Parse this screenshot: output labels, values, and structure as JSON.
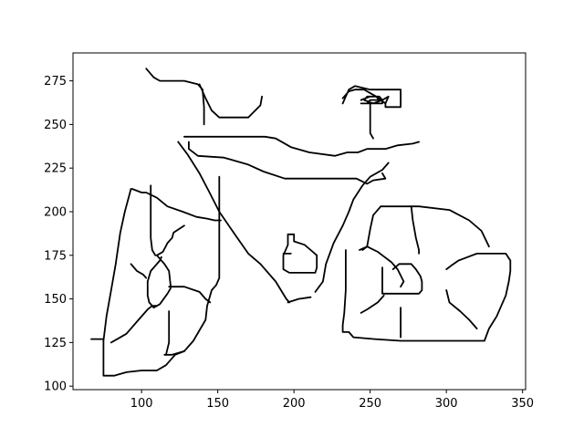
{
  "chart_data": {
    "type": "line",
    "title": "",
    "xlabel": "",
    "ylabel": "",
    "xlim": [
      55,
      352
    ],
    "ylim": [
      98,
      291
    ],
    "grid": false,
    "legend": "none",
    "line_color": "#000000",
    "x_ticks": [
      100,
      150,
      200,
      250,
      300,
      350
    ],
    "y_ticks": [
      100,
      125,
      150,
      175,
      200,
      225,
      250,
      275
    ],
    "x_tick_labels": [
      "100",
      "150",
      "200",
      "250",
      "300",
      "350"
    ],
    "y_tick_labels": [
      "100",
      "125",
      "150",
      "175",
      "200",
      "225",
      "250",
      "275"
    ],
    "strokes": [
      {
        "name": "top-left-arc",
        "points": [
          [
            103,
            282
          ],
          [
            108,
            277
          ],
          [
            112,
            275
          ],
          [
            128,
            275
          ],
          [
            137,
            273
          ],
          [
            140,
            270
          ]
        ]
      },
      {
        "name": "neck-curve",
        "points": [
          [
            138,
            273
          ],
          [
            142,
            265
          ],
          [
            146,
            258
          ],
          [
            151,
            254
          ],
          [
            170,
            254
          ],
          [
            178,
            261
          ],
          [
            179,
            266
          ]
        ]
      },
      {
        "name": "neck-tail",
        "points": [
          [
            140,
            270
          ],
          [
            141,
            260
          ],
          [
            141,
            250
          ]
        ]
      },
      {
        "name": "top-bar",
        "points": [
          [
            128,
            243
          ],
          [
            181,
            243
          ],
          [
            188,
            242
          ],
          [
            198,
            237
          ],
          [
            210,
            234
          ],
          [
            227,
            232
          ],
          [
            235,
            234
          ],
          [
            242,
            234
          ],
          [
            248,
            236
          ],
          [
            260,
            236
          ],
          [
            268,
            238
          ],
          [
            278,
            239
          ],
          [
            282,
            240
          ]
        ]
      },
      {
        "name": "second-bar",
        "points": [
          [
            131,
            240
          ],
          [
            131,
            236
          ],
          [
            137,
            232
          ],
          [
            154,
            231
          ],
          [
            170,
            227
          ],
          [
            180,
            223
          ],
          [
            194,
            219
          ],
          [
            196,
            219
          ],
          [
            241,
            219
          ],
          [
            248,
            216
          ],
          [
            252,
            218
          ],
          [
            260,
            219
          ],
          [
            258,
            222
          ]
        ]
      },
      {
        "name": "upper-right-diagonal",
        "points": [
          [
            262,
            228
          ],
          [
            258,
            224
          ],
          [
            250,
            220
          ],
          [
            245,
            215
          ],
          [
            239,
            207
          ],
          [
            236,
            200
          ],
          [
            232,
            192
          ],
          [
            226,
            182
          ],
          [
            221,
            170
          ],
          [
            219,
            160
          ],
          [
            214,
            154
          ]
        ]
      },
      {
        "name": "long-diagonal",
        "points": [
          [
            124,
            240
          ],
          [
            130,
            233
          ],
          [
            138,
            222
          ],
          [
            144,
            212
          ],
          [
            151,
            200
          ],
          [
            162,
            186
          ],
          [
            170,
            176
          ],
          [
            178,
            170
          ],
          [
            188,
            160
          ],
          [
            195,
            150
          ],
          [
            197,
            148
          ]
        ]
      },
      {
        "name": "diagonal-end",
        "points": [
          [
            196,
            148
          ],
          [
            203,
            150
          ],
          [
            211,
            151
          ]
        ]
      },
      {
        "name": "vertical-center",
        "points": [
          [
            151,
            220
          ],
          [
            151,
            195
          ],
          [
            151,
            188
          ],
          [
            151,
            162
          ],
          [
            149,
            158
          ]
        ]
      },
      {
        "name": "center-tail",
        "points": [
          [
            149,
            158
          ],
          [
            146,
            155
          ],
          [
            143,
            146
          ],
          [
            142,
            138
          ],
          [
            138,
            132
          ],
          [
            134,
            126
          ],
          [
            128,
            120
          ],
          [
            120,
            118
          ],
          [
            115,
            118
          ]
        ]
      },
      {
        "name": "left-vertical",
        "points": [
          [
            106,
            215
          ],
          [
            106,
            185
          ],
          [
            107,
            178
          ],
          [
            109,
            175
          ]
        ]
      },
      {
        "name": "small-hook",
        "points": [
          [
            110,
            175
          ],
          [
            114,
            177
          ],
          [
            117,
            182
          ],
          [
            120,
            185
          ],
          [
            121,
            188
          ],
          [
            128,
            192
          ]
        ]
      },
      {
        "name": "left-loop",
        "points": [
          [
            110,
            175
          ],
          [
            115,
            170
          ],
          [
            118,
            166
          ],
          [
            119,
            158
          ],
          [
            119,
            156
          ],
          [
            117,
            153
          ],
          [
            112,
            147
          ],
          [
            108,
            145
          ],
          [
            105,
            148
          ],
          [
            104,
            152
          ],
          [
            104,
            160
          ],
          [
            106,
            166
          ],
          [
            112,
            172
          ],
          [
            113,
            174
          ]
        ]
      },
      {
        "name": "left-boundary",
        "points": [
          [
            93,
            213
          ],
          [
            94,
            213
          ],
          [
            100,
            211
          ],
          [
            103,
            211
          ],
          [
            110,
            208
          ],
          [
            117,
            203
          ],
          [
            127,
            200
          ],
          [
            136,
            197
          ],
          [
            143,
            196
          ],
          [
            148,
            195
          ],
          [
            152,
            195
          ]
        ]
      },
      {
        "name": "left-outline",
        "points": [
          [
            93,
            213
          ],
          [
            89,
            200
          ],
          [
            86,
            188
          ],
          [
            83,
            170
          ],
          [
            80,
            155
          ],
          [
            77,
            140
          ],
          [
            75,
            126
          ],
          [
            75,
            106
          ],
          [
            82,
            106
          ],
          [
            90,
            108
          ],
          [
            100,
            109
          ],
          [
            110,
            109
          ],
          [
            116,
            112
          ],
          [
            122,
            118
          ],
          [
            128,
            120
          ]
        ]
      },
      {
        "name": "left-spur",
        "points": [
          [
            67,
            127
          ],
          [
            75,
            127
          ]
        ]
      },
      {
        "name": "left-curve",
        "points": [
          [
            80,
            125
          ],
          [
            90,
            130
          ],
          [
            98,
            138
          ],
          [
            104,
            144
          ],
          [
            107,
            146
          ],
          [
            110,
            146
          ]
        ]
      },
      {
        "name": "mid-left-curve",
        "points": [
          [
            93,
            170
          ],
          [
            97,
            166
          ],
          [
            101,
            164
          ],
          [
            103,
            162
          ]
        ]
      },
      {
        "name": "bottom-stem",
        "points": [
          [
            118,
            143
          ],
          [
            118,
            125
          ],
          [
            116,
            118
          ]
        ]
      },
      {
        "name": "bottom-loop",
        "points": [
          [
            118,
            157
          ],
          [
            128,
            157
          ],
          [
            138,
            154
          ],
          [
            142,
            150
          ],
          [
            145,
            148
          ]
        ]
      },
      {
        "name": "center-blob",
        "points": [
          [
            196,
            187
          ],
          [
            200,
            187
          ],
          [
            200,
            183
          ],
          [
            207,
            181
          ],
          [
            211,
            178
          ],
          [
            215,
            175
          ],
          [
            215,
            168
          ],
          [
            214,
            165
          ],
          [
            205,
            165
          ],
          [
            197,
            165
          ],
          [
            193,
            167
          ],
          [
            193,
            175
          ],
          [
            196,
            181
          ],
          [
            196,
            187
          ]
        ]
      },
      {
        "name": "blob-mark",
        "points": [
          [
            193,
            176
          ],
          [
            198,
            176
          ]
        ]
      },
      {
        "name": "right-vertical",
        "points": [
          [
            234,
            178
          ],
          [
            234,
            155
          ],
          [
            233,
            142
          ],
          [
            232,
            135
          ],
          [
            232,
            131
          ],
          [
            236,
            131
          ],
          [
            239,
            128
          ],
          [
            253,
            127
          ],
          [
            270,
            126
          ],
          [
            325,
            126
          ],
          [
            328,
            133
          ],
          [
            333,
            140
          ],
          [
            339,
            152
          ],
          [
            341,
            160
          ],
          [
            342,
            166
          ],
          [
            342,
            172
          ],
          [
            339,
            176
          ],
          [
            330,
            176
          ],
          [
            320,
            176
          ],
          [
            308,
            172
          ],
          [
            303,
            169
          ],
          [
            300,
            167
          ]
        ]
      },
      {
        "name": "right-loop-outer",
        "points": [
          [
            257,
            203
          ],
          [
            268,
            203
          ],
          [
            282,
            203
          ],
          [
            302,
            201
          ],
          [
            315,
            195
          ],
          [
            323,
            189
          ],
          [
            328,
            180
          ]
        ]
      },
      {
        "name": "right-loop-inner",
        "points": [
          [
            257,
            203
          ],
          [
            252,
            198
          ],
          [
            250,
            190
          ],
          [
            248,
            180
          ],
          [
            245,
            178
          ]
        ]
      },
      {
        "name": "cross-mark",
        "points": [
          [
            243,
            178
          ],
          [
            248,
            180
          ],
          [
            255,
            177
          ],
          [
            258,
            175
          ],
          [
            264,
            171
          ],
          [
            268,
            167
          ],
          [
            272,
            160
          ],
          [
            270,
            157
          ]
        ]
      },
      {
        "name": "right-rect",
        "points": [
          [
            258,
            168
          ],
          [
            258,
            161
          ],
          [
            258,
            153
          ],
          [
            282,
            153
          ],
          [
            284,
            155
          ],
          [
            284,
            160
          ],
          [
            283,
            163
          ],
          [
            280,
            167
          ],
          [
            277,
            170
          ],
          [
            269,
            170
          ],
          [
            265,
            167
          ]
        ]
      },
      {
        "name": "rect-tail",
        "points": [
          [
            277,
            203
          ],
          [
            278,
            195
          ],
          [
            280,
            185
          ],
          [
            282,
            178
          ],
          [
            282,
            176
          ]
        ]
      },
      {
        "name": "center-stem",
        "points": [
          [
            270,
            145
          ],
          [
            270,
            128
          ]
        ]
      },
      {
        "name": "lower-curve",
        "points": [
          [
            244,
            142
          ],
          [
            248,
            144
          ],
          [
            255,
            148
          ],
          [
            259,
            152
          ]
        ]
      },
      {
        "name": "lower-right-curve",
        "points": [
          [
            300,
            155
          ],
          [
            302,
            148
          ],
          [
            309,
            143
          ],
          [
            315,
            138
          ],
          [
            320,
            133
          ]
        ]
      },
      {
        "name": "top-right-box",
        "points": [
          [
            232,
            265
          ],
          [
            236,
            269
          ],
          [
            240,
            270
          ],
          [
            246,
            270
          ],
          [
            254,
            266
          ],
          [
            260,
            262
          ],
          [
            260,
            260
          ],
          [
            270,
            260
          ],
          [
            270,
            270
          ],
          [
            260,
            270
          ],
          [
            255,
            270
          ],
          [
            250,
            270
          ],
          [
            240,
            272
          ],
          [
            236,
            270
          ],
          [
            234,
            266
          ],
          [
            232,
            262
          ]
        ]
      },
      {
        "name": "top-right-swirl",
        "points": [
          [
            244,
            264
          ],
          [
            250,
            266
          ],
          [
            256,
            266
          ],
          [
            258,
            264
          ],
          [
            258,
            262
          ],
          [
            252,
            262
          ],
          [
            246,
            264
          ],
          [
            248,
            266
          ],
          [
            254,
            266
          ],
          [
            256,
            264
          ],
          [
            250,
            264
          ],
          [
            248,
            262
          ],
          [
            244,
            262
          ],
          [
            252,
            262
          ],
          [
            258,
            264
          ],
          [
            262,
            266
          ],
          [
            260,
            262
          ]
        ]
      },
      {
        "name": "top-right-stem",
        "points": [
          [
            250,
            262
          ],
          [
            250,
            245
          ],
          [
            252,
            242
          ]
        ]
      }
    ]
  }
}
